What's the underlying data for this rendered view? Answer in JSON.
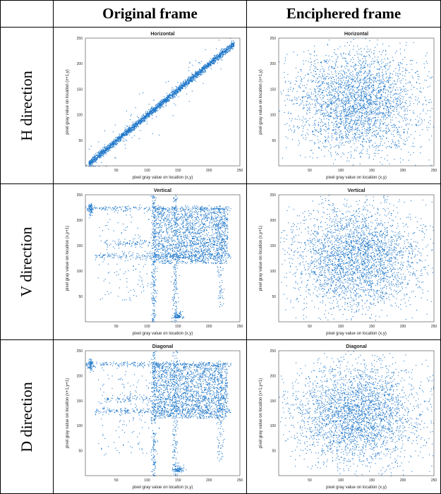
{
  "table": {
    "col_headers": [
      "Original frame",
      "Enciphered frame"
    ],
    "row_labels": [
      "H direction",
      "V direction",
      "D direction"
    ]
  },
  "chart_data": [
    {
      "type": "scatter",
      "panel": "H-original",
      "pattern": "diagonal",
      "title": "Horizontal",
      "xlabel": "pixel gray value on location (x,y)",
      "ylabel": "pixel gray value on location (x+1,y)",
      "xticks": [
        50,
        100,
        150,
        200,
        250
      ],
      "yticks": [
        50,
        100,
        150,
        200,
        250
      ],
      "xlim": [
        0,
        250
      ],
      "ylim": [
        0,
        250
      ],
      "color": "#1f77c9"
    },
    {
      "type": "scatter",
      "panel": "H-enciphered",
      "pattern": "uniform",
      "title": "Horizontal",
      "xlabel": "pixel gray value on location (x,y)",
      "ylabel": "pixel gray value on location (x+1,y)",
      "xticks": [
        50,
        100,
        150,
        200,
        250
      ],
      "yticks": [
        50,
        100,
        150,
        200,
        250
      ],
      "xlim": [
        0,
        250
      ],
      "ylim": [
        0,
        250
      ],
      "color": "#1f77c9"
    },
    {
      "type": "scatter",
      "panel": "V-original",
      "pattern": "structured",
      "title": "Vertical",
      "xlabel": "pixel gray value on location (x,y)",
      "ylabel": "pixel gray value on location (x,y+1)",
      "xticks": [
        50,
        100,
        150,
        200,
        250
      ],
      "yticks": [
        50,
        100,
        150,
        200,
        250
      ],
      "xlim": [
        0,
        250
      ],
      "ylim": [
        0,
        250
      ],
      "color": "#1f77c9"
    },
    {
      "type": "scatter",
      "panel": "V-enciphered",
      "pattern": "uniform",
      "title": "Vertical",
      "xlabel": "pixel gray value on location (x,y)",
      "ylabel": "pixel gray value on location (x,y+1)",
      "xticks": [
        50,
        100,
        150,
        200,
        250
      ],
      "yticks": [
        50,
        100,
        150,
        200,
        250
      ],
      "xlim": [
        0,
        250
      ],
      "ylim": [
        0,
        250
      ],
      "color": "#1f77c9"
    },
    {
      "type": "scatter",
      "panel": "D-original",
      "pattern": "structured",
      "title": "Diagonal",
      "xlabel": "pixel gray value on location (x,y)",
      "ylabel": "pixel gray value on location (x+1,y+1)",
      "xticks": [
        50,
        100,
        150,
        200,
        250
      ],
      "yticks": [
        50,
        100,
        150,
        200,
        250
      ],
      "xlim": [
        0,
        250
      ],
      "ylim": [
        0,
        250
      ],
      "color": "#1f77c9"
    },
    {
      "type": "scatter",
      "panel": "D-enciphered",
      "pattern": "uniform",
      "title": "Diagonal",
      "xlabel": "pixel gray value on location (x,y)",
      "ylabel": "pixel gray value on location (x+1,y+1)",
      "xticks": [
        50,
        100,
        150,
        200,
        250
      ],
      "yticks": [
        50,
        100,
        150,
        200,
        250
      ],
      "xlim": [
        0,
        250
      ],
      "ylim": [
        0,
        250
      ],
      "color": "#1f77c9"
    }
  ]
}
